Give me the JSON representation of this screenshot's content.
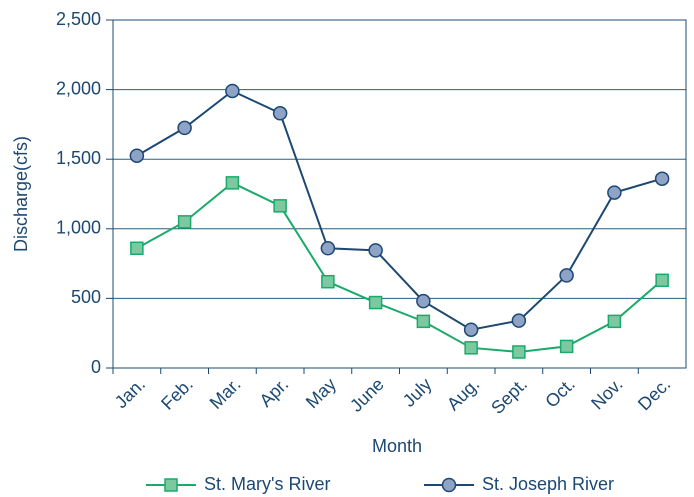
{
  "chart_data": {
    "type": "line",
    "x_label": "Month",
    "y_label": "Discharge(cfs)",
    "categories": [
      "Jan.",
      "Feb.",
      "Mar.",
      "Apr.",
      "May",
      "June",
      "July",
      "Aug.",
      "Sept.",
      "Oct.",
      "Nov.",
      "Dec."
    ],
    "series": [
      {
        "name": "St. Mary's River",
        "color": "#1aaa6a",
        "marker": "square",
        "marker_fill": "#7cc8a0",
        "values": [
          860,
          1050,
          1330,
          1165,
          620,
          470,
          335,
          145,
          115,
          155,
          335,
          630
        ]
      },
      {
        "name": "St. Joseph River",
        "color": "#1c4872",
        "marker": "circle",
        "marker_fill": "#8ea3c6",
        "values": [
          1525,
          1725,
          1990,
          1830,
          860,
          845,
          480,
          275,
          340,
          665,
          1260,
          1360
        ]
      }
    ],
    "ylim": [
      0,
      2500
    ],
    "yticks": [
      0,
      500,
      {
        "value": 1000,
        "label": "1,000"
      },
      {
        "value": 1500,
        "label": "1,500"
      },
      {
        "value": 2000,
        "label": "2,000"
      },
      {
        "value": 2500,
        "label": "2,500"
      }
    ],
    "grid": true,
    "legend": "bottom"
  }
}
